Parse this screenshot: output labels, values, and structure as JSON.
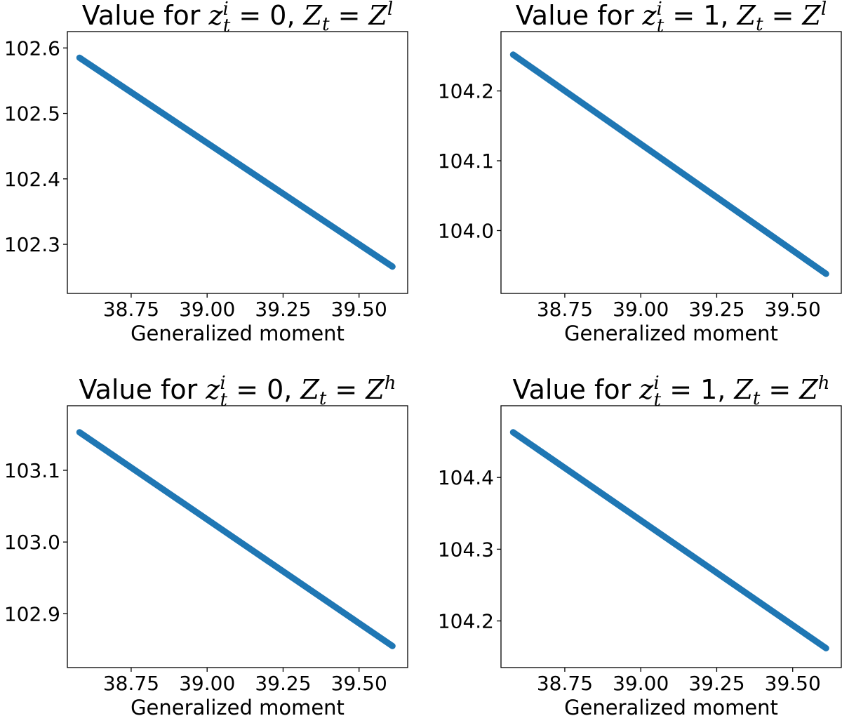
{
  "chart_data": [
    {
      "type": "line",
      "title": {
        "prefix": "Value for ",
        "z": "z",
        "z_sup": "i",
        "z_sub": "t",
        "zval": "0",
        "Z": "Z",
        "Z_sub": "t",
        "Z_sup": "l"
      },
      "xlabel": "Generalized moment",
      "ylabel": "",
      "xlim": [
        38.54,
        39.66
      ],
      "ylim": [
        102.225,
        102.625
      ],
      "xticks": [
        "38.75",
        "39.00",
        "39.25",
        "39.50"
      ],
      "yticks": [
        "102.3",
        "102.4",
        "102.5",
        "102.6"
      ],
      "series": [
        {
          "color": "#1f77b4",
          "x": [
            38.58,
            39.61
          ],
          "y": [
            102.585,
            102.266
          ]
        }
      ]
    },
    {
      "type": "line",
      "title": {
        "prefix": "Value for ",
        "z": "z",
        "z_sup": "i",
        "z_sub": "t",
        "zval": "1",
        "Z": "Z",
        "Z_sub": "t",
        "Z_sup": "l"
      },
      "xlabel": "Generalized moment",
      "ylabel": "",
      "xlim": [
        38.54,
        39.66
      ],
      "ylim": [
        103.91,
        104.285
      ],
      "xticks": [
        "38.75",
        "39.00",
        "39.25",
        "39.50"
      ],
      "yticks": [
        "104.0",
        "104.1",
        "104.2"
      ],
      "series": [
        {
          "color": "#1f77b4",
          "x": [
            38.58,
            39.61
          ],
          "y": [
            104.252,
            103.938
          ]
        }
      ]
    },
    {
      "type": "line",
      "title": {
        "prefix": "Value for ",
        "z": "z",
        "z_sup": "i",
        "z_sub": "t",
        "zval": "0",
        "Z": "Z",
        "Z_sub": "t",
        "Z_sup": "h"
      },
      "xlabel": "Generalized moment",
      "ylabel": "",
      "xlim": [
        38.54,
        39.66
      ],
      "ylim": [
        102.825,
        103.19
      ],
      "xticks": [
        "38.75",
        "39.00",
        "39.25",
        "39.50"
      ],
      "yticks": [
        "102.9",
        "103.0",
        "103.1"
      ],
      "series": [
        {
          "color": "#1f77b4",
          "x": [
            38.58,
            39.61
          ],
          "y": [
            103.153,
            102.855
          ]
        }
      ]
    },
    {
      "type": "line",
      "title": {
        "prefix": "Value for ",
        "z": "z",
        "z_sup": "i",
        "z_sub": "t",
        "zval": "1",
        "Z": "Z",
        "Z_sub": "t",
        "Z_sup": "h"
      },
      "xlabel": "Generalized moment",
      "ylabel": "",
      "xlim": [
        38.54,
        39.66
      ],
      "ylim": [
        104.135,
        104.5
      ],
      "xticks": [
        "38.75",
        "39.00",
        "39.25",
        "39.50"
      ],
      "yticks": [
        "104.2",
        "104.3",
        "104.4"
      ],
      "series": [
        {
          "color": "#1f77b4",
          "x": [
            38.58,
            39.61
          ],
          "y": [
            104.463,
            104.162
          ]
        }
      ]
    }
  ]
}
